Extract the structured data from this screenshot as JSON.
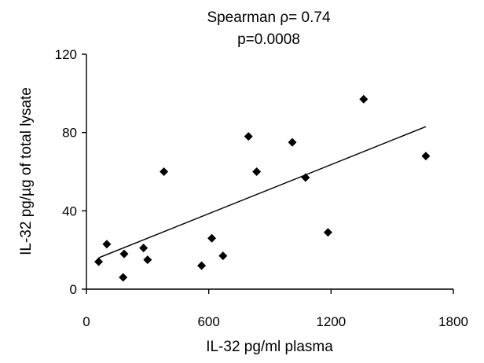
{
  "chart_data": {
    "type": "scatter",
    "title": "Spearman ρ= 0.74",
    "subtitle": "p=0.0008",
    "xlabel": "IL-32 pg/ml plasma",
    "ylabel": "IL-32 pg/µg of total lysate",
    "xlim": [
      0,
      1800
    ],
    "ylim": [
      0,
      120
    ],
    "xticks": [
      0,
      600,
      1200,
      1800
    ],
    "yticks": [
      0,
      40,
      80,
      120
    ],
    "xtick_labels": [
      "0",
      "600",
      "1200",
      "1800"
    ],
    "ytick_labels": [
      "0",
      "40",
      "80",
      "120"
    ],
    "grid": false,
    "marker": "diamond",
    "marker_color": "#000000",
    "points": [
      {
        "x": 60,
        "y": 14
      },
      {
        "x": 100,
        "y": 23
      },
      {
        "x": 180,
        "y": 6
      },
      {
        "x": 185,
        "y": 18
      },
      {
        "x": 280,
        "y": 21
      },
      {
        "x": 300,
        "y": 15
      },
      {
        "x": 380,
        "y": 60
      },
      {
        "x": 565,
        "y": 12
      },
      {
        "x": 615,
        "y": 26
      },
      {
        "x": 670,
        "y": 17
      },
      {
        "x": 795,
        "y": 78
      },
      {
        "x": 835,
        "y": 60
      },
      {
        "x": 1010,
        "y": 75
      },
      {
        "x": 1075,
        "y": 57
      },
      {
        "x": 1185,
        "y": 29
      },
      {
        "x": 1360,
        "y": 97
      },
      {
        "x": 1665,
        "y": 68
      }
    ],
    "trendline": {
      "type": "linear",
      "x": [
        60,
        1665
      ],
      "y": [
        16,
        83
      ]
    }
  }
}
